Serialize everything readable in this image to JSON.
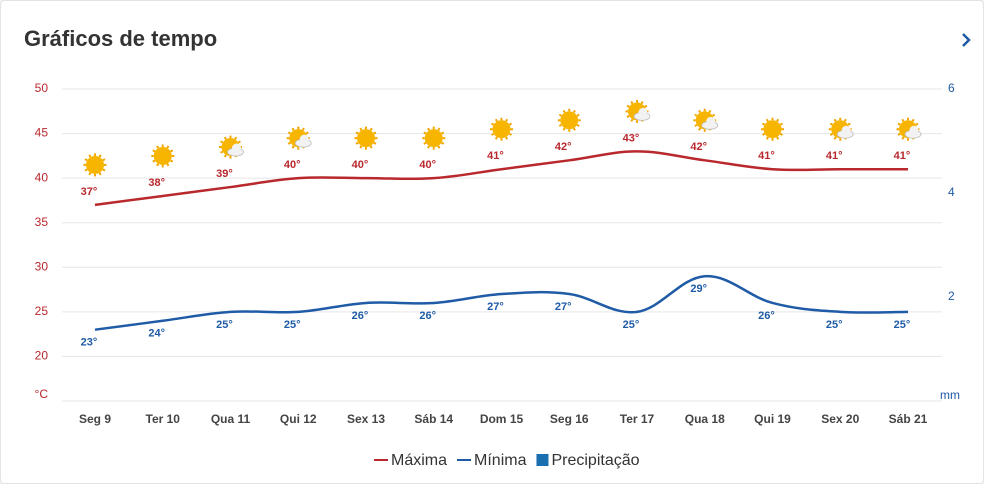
{
  "chart_data": {
    "type": "line",
    "title": "Gráficos de tempo",
    "y_label": "°C",
    "y2_label": "mm",
    "categories": [
      "Seg 9",
      "Ter 10",
      "Qua 11",
      "Qui 12",
      "Sex 13",
      "Sáb 14",
      "Dom 15",
      "Seg 16",
      "Ter 17",
      "Qua 18",
      "Qui 19",
      "Sex 20",
      "Sáb 21"
    ],
    "series": [
      {
        "name": "Máxima",
        "color": "#b8282d",
        "values": [
          37,
          38,
          39,
          40,
          40,
          40,
          41,
          42,
          43,
          42,
          41,
          41,
          41
        ],
        "value_labels": [
          "37°",
          "38°",
          "39°",
          "40°",
          "40°",
          "40°",
          "41°",
          "42°",
          "43°",
          "42°",
          "41°",
          "41°",
          "41°"
        ]
      },
      {
        "name": "Mínima",
        "color": "#1f5ba6",
        "values": [
          23,
          24,
          25,
          25,
          26,
          26,
          27,
          27,
          25,
          29,
          26,
          25,
          25
        ],
        "value_labels": [
          "23°",
          "24°",
          "25°",
          "25°",
          "26°",
          "26°",
          "27°",
          "27°",
          "25°",
          "29°",
          "26°",
          "25°",
          "25°"
        ]
      },
      {
        "name": "Precipitação",
        "color": "#1a6fb0",
        "axis": "y2",
        "kind": "bar",
        "values": [
          0,
          0,
          0,
          0,
          0,
          0,
          0,
          0,
          0,
          0,
          0,
          0,
          0
        ]
      }
    ],
    "ylim": [
      15,
      50
    ],
    "yticks": [
      20,
      25,
      30,
      35,
      40,
      45,
      50
    ],
    "y2lim": [
      0,
      6
    ],
    "y2ticks": [
      2,
      4,
      6
    ],
    "grid": true,
    "legend": "bottom"
  }
}
